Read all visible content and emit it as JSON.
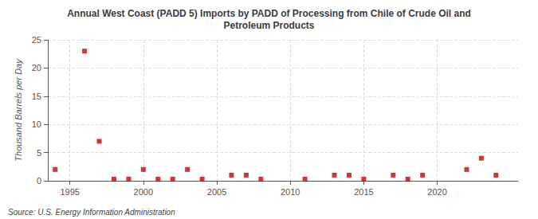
{
  "chart_data": {
    "type": "scatter",
    "title": "Annual West Coast (PADD 5) Imports by PADD of Processing from Chile of Crude Oil and\nPetroleum Products",
    "ylabel": "Thousand Barrels per Day",
    "annotations": [
      "Source: U.S. Energy Information Administration"
    ],
    "x": [
      1994,
      1996,
      1997,
      1998,
      1999,
      2000,
      2001,
      2002,
      2003,
      2004,
      2006,
      2007,
      2008,
      2011,
      2013,
      2014,
      2015,
      2017,
      2018,
      2019,
      2022,
      2023,
      2024
    ],
    "values": [
      2.0,
      23.0,
      7.0,
      0.3,
      0.3,
      2.0,
      0.3,
      0.3,
      2.0,
      0.3,
      1.0,
      1.0,
      0.3,
      0.3,
      1.0,
      1.0,
      0.3,
      1.0,
      0.3,
      1.0,
      2.0,
      4.0,
      1.0
    ],
    "color": "#cc0000",
    "marker": "square",
    "xlim": [
      1993.5,
      2025.5
    ],
    "xticks": [
      1995,
      2000,
      2005,
      2010,
      2015,
      2020
    ],
    "ylim": [
      0,
      25
    ],
    "yticks": [
      0,
      5,
      10,
      15,
      20,
      25
    ],
    "grid": true
  }
}
